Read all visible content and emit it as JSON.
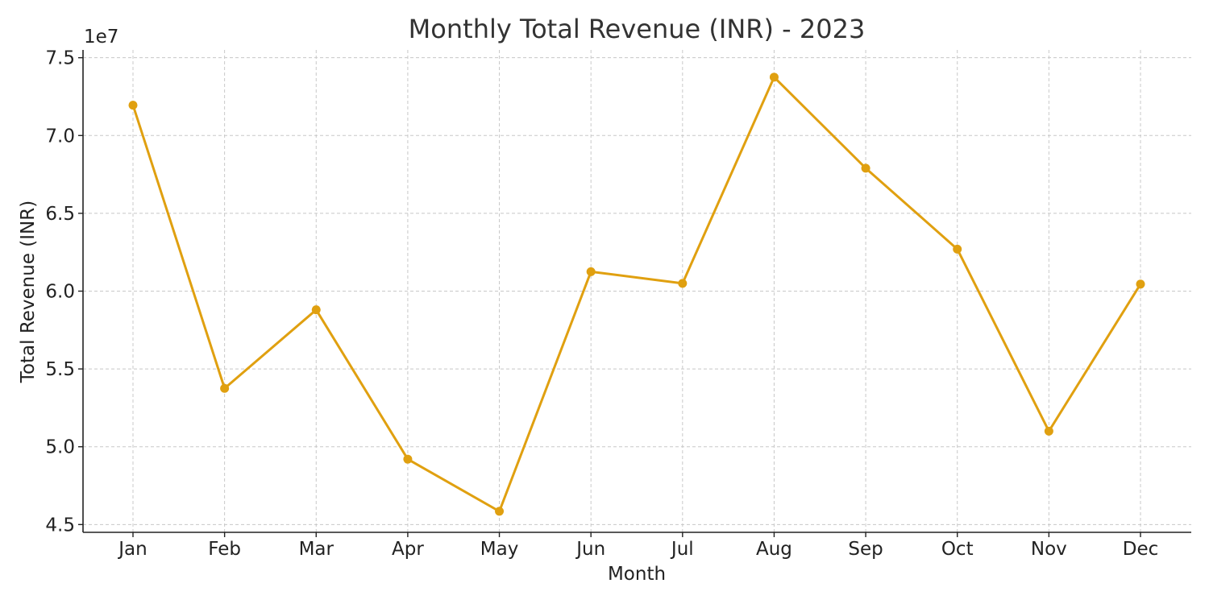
{
  "chart_data": {
    "type": "line",
    "title": "Monthly Total Revenue (INR) - 2023",
    "xlabel": "Month",
    "ylabel": "Total Revenue (INR)",
    "y_offset_label": "1e7",
    "categories": [
      "Jan",
      "Feb",
      "Mar",
      "Apr",
      "May",
      "Jun",
      "Jul",
      "Aug",
      "Sep",
      "Oct",
      "Nov",
      "Dec"
    ],
    "series": [
      {
        "values": [
          71950000,
          53750000,
          58800000,
          49200000,
          45850000,
          61250000,
          60500000,
          73750000,
          67900000,
          62700000,
          51000000,
          60450000
        ],
        "color": "#E0A010"
      }
    ],
    "ylim": [
      44500000,
      75500000
    ],
    "yticks": [
      45000000,
      50000000,
      55000000,
      60000000,
      65000000,
      70000000,
      75000000
    ],
    "ytick_labels": [
      "4.5",
      "5.0",
      "5.5",
      "6.0",
      "6.5",
      "7.0",
      "7.5"
    ],
    "grid": true,
    "markers": true
  }
}
